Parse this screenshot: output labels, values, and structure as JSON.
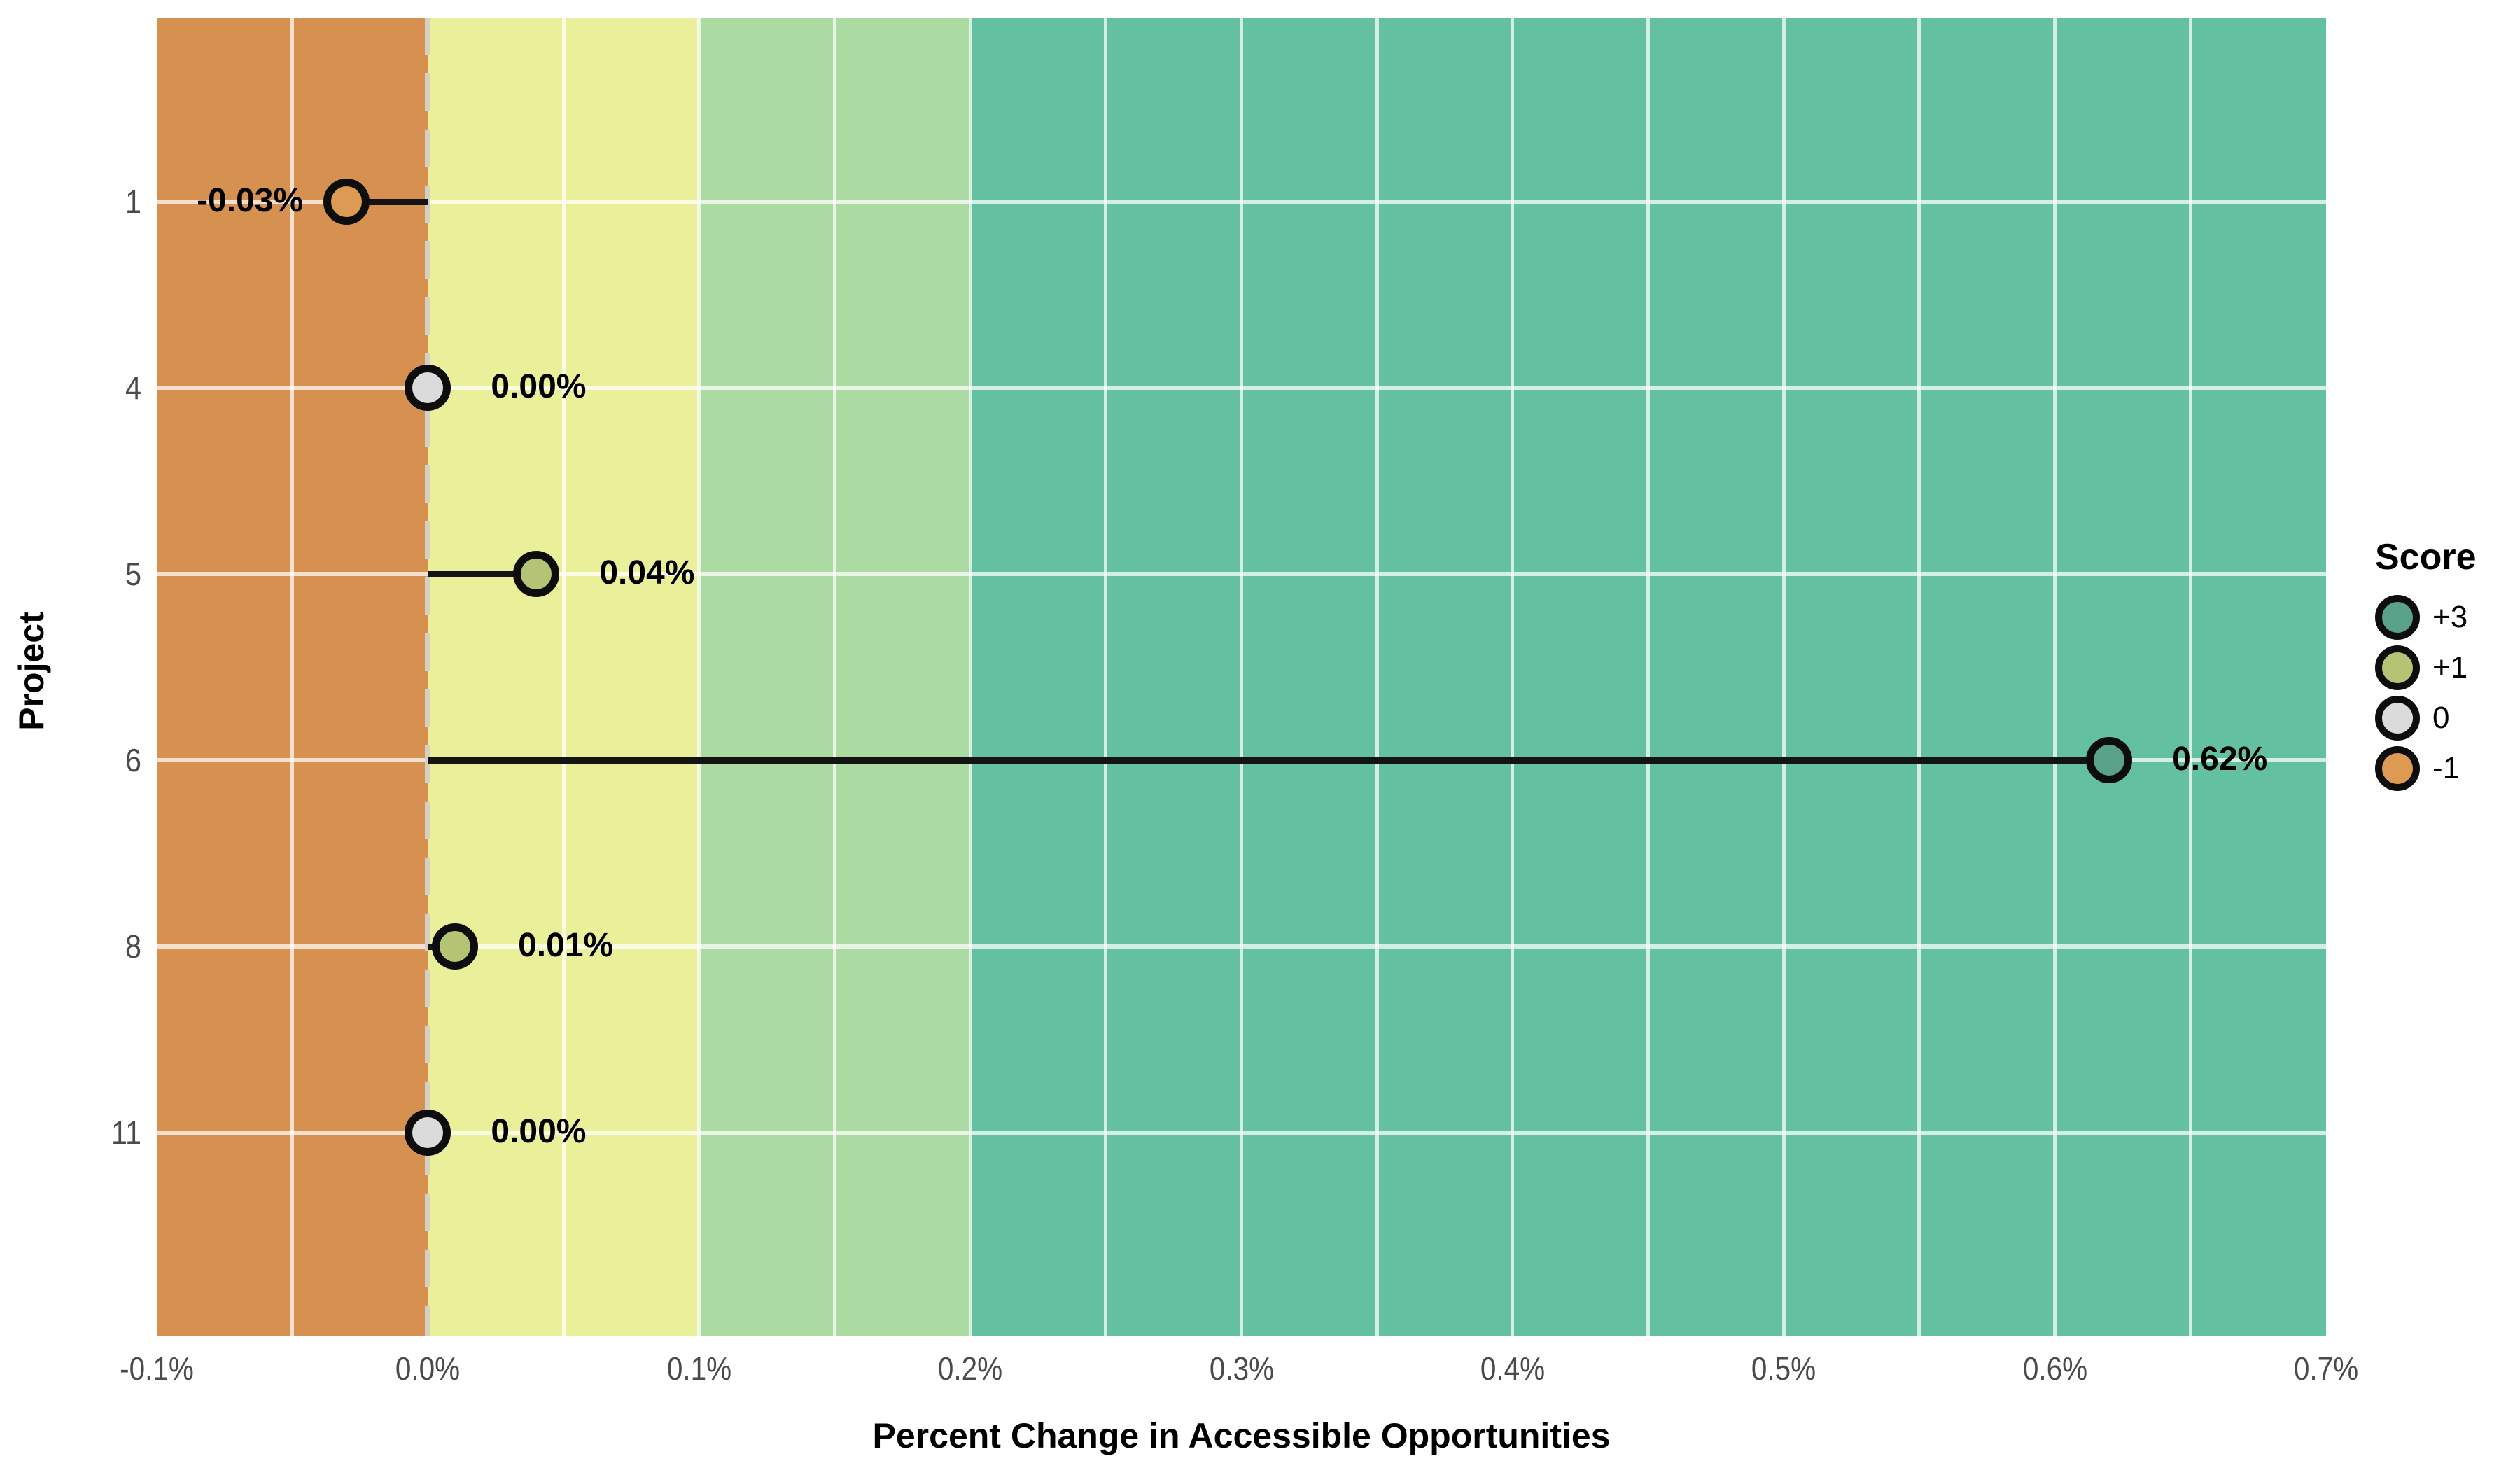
{
  "chart_data": {
    "type": "lollipop",
    "title": "",
    "xlabel": "Percent Change in Accessible Opportunities",
    "ylabel": "Project",
    "xlim": [
      -0.1,
      0.7
    ],
    "x_ticks": [
      {
        "value": -0.1,
        "label": "-0.1%"
      },
      {
        "value": 0.0,
        "label": "0.0%"
      },
      {
        "value": 0.1,
        "label": "0.1%"
      },
      {
        "value": 0.2,
        "label": "0.2%"
      },
      {
        "value": 0.3,
        "label": "0.3%"
      },
      {
        "value": 0.4,
        "label": "0.4%"
      },
      {
        "value": 0.5,
        "label": "0.5%"
      },
      {
        "value": 0.6,
        "label": "0.6%"
      },
      {
        "value": 0.7,
        "label": "0.7%"
      }
    ],
    "grid_minor_step_pct": 0.05,
    "grid_on": true,
    "rows": [
      {
        "project": "1",
        "value_pct": -0.03,
        "label": "-0.03%",
        "score": "-1"
      },
      {
        "project": "4",
        "value_pct": 0.0,
        "label": "0.00%",
        "score": "0"
      },
      {
        "project": "5",
        "value_pct": 0.04,
        "label": "0.04%",
        "score": "+1"
      },
      {
        "project": "6",
        "value_pct": 0.62,
        "label": "0.62%",
        "score": "+3"
      },
      {
        "project": "8",
        "value_pct": 0.01,
        "label": "0.01%",
        "score": "+1"
      },
      {
        "project": "11",
        "value_pct": 0.0,
        "label": "0.00%",
        "score": "0"
      }
    ],
    "score_colors": {
      "+3": "#5AA189",
      "+1": "#B5C374",
      "0": "#DBDBDB",
      "-1": "#DC9A52"
    },
    "bands": [
      {
        "from_pct": -0.1,
        "to_pct": 0.0,
        "color": "#D6904F"
      },
      {
        "from_pct": 0.0,
        "to_pct": 0.1,
        "color": "#E9F099"
      },
      {
        "from_pct": 0.1,
        "to_pct": 0.2,
        "color": "#ABDAA3"
      },
      {
        "from_pct": 0.2,
        "to_pct": 0.7,
        "color": "#63C1A2"
      }
    ],
    "zero_reference_line_pct": 0.0,
    "legend": {
      "title": "Score",
      "position": "right",
      "entries": [
        {
          "label": "+3",
          "color": "#5AA189"
        },
        {
          "label": "+1",
          "color": "#B5C374"
        },
        {
          "label": "0",
          "color": "#DBDBDB"
        },
        {
          "label": "-1",
          "color": "#DC9A52"
        }
      ]
    },
    "colors": {
      "gridline": "rgba(255,255,255,0.72)",
      "zero_dash": "#D5D0C4",
      "stem": "#141414",
      "tick_text": "#4a4a4a",
      "value_text": "#000000"
    }
  }
}
